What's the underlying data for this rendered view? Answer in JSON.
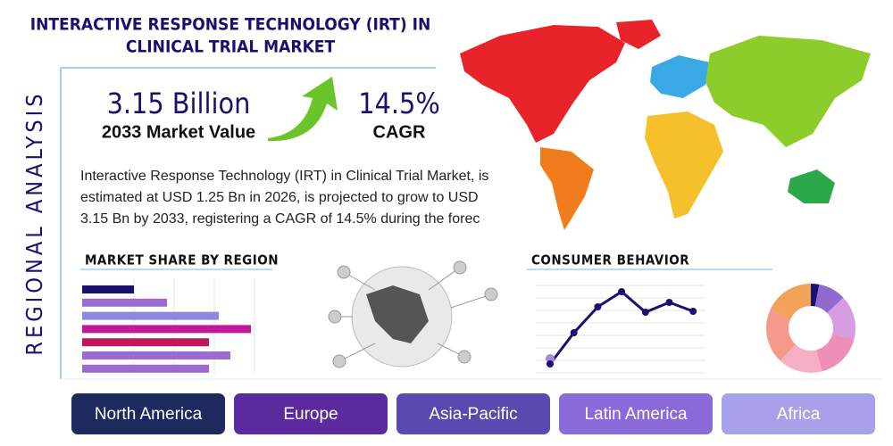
{
  "header": {
    "title_lines": [
      "INTERACTIVE RESPONSE TECHNOLOGY (IRT) IN",
      "CLINICAL TRIAL MARKET"
    ],
    "side_label": "REGIONAL ANALYSIS"
  },
  "stats": [
    {
      "value": "3.15 Billion",
      "label": "2033 Market Value"
    },
    {
      "value": "14.5%",
      "label": "CAGR"
    }
  ],
  "description": [
    "Interactive Response Technology (IRT) in Clinical Trial Market, is",
    "estimated at USD 1.25 Bn in 2026, is projected to grow to USD",
    "3.15 Bn by 2033, registering a CAGR of 14.5% during the forec"
  ],
  "market_share": {
    "type": "bar",
    "title": "MARKET SHARE BY REGION",
    "values": [
      58,
      95,
      153,
      189,
      142,
      166,
      142
    ],
    "colors": [
      "#1a1070",
      "#9b6bd1",
      "#8f86e0",
      "#c2189b",
      "#c2185b",
      "#9b6bd1",
      "#9b6bd1"
    ]
  },
  "consumer_behavior": {
    "type": "line",
    "title": "CONSUMER BEHAVIOR",
    "values": [
      12,
      47,
      76,
      93,
      70,
      81,
      71
    ],
    "ylim": [
      0,
      100
    ],
    "color": "#1a1070"
  },
  "donut": {
    "type": "pie",
    "values": [
      3,
      10,
      16,
      17,
      16,
      20,
      18
    ],
    "colors": [
      "#1a1070",
      "#8f6ad0",
      "#d69be0",
      "#ee8fb8",
      "#f6b0c4",
      "#f59a8a",
      "#f2a25a"
    ]
  },
  "regions": [
    "North America",
    "Europe",
    "Asia-Pacific",
    "Latin America",
    "Africa"
  ]
}
